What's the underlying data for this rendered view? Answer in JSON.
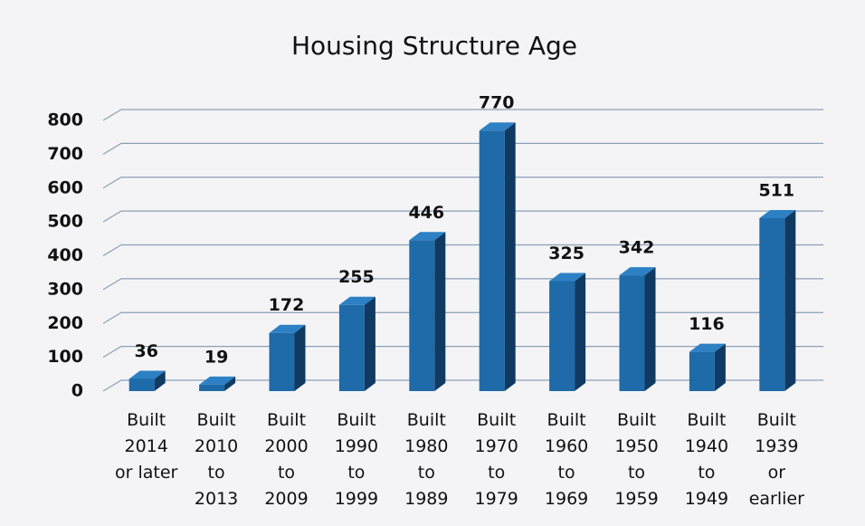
{
  "chart_data": {
    "type": "bar",
    "title": "Housing Structure Age",
    "categories": [
      "Built\n2014\nor later",
      "Built\n2010\nto\n2013",
      "Built\n2000\nto\n2009",
      "Built\n1990\nto\n1999",
      "Built\n1980\nto\n1989",
      "Built\n1970\nto\n1979",
      "Built\n1960\nto\n1969",
      "Built\n1950\nto\n1959",
      "Built\n1940\nto\n1949",
      "Built\n1939\nor\nearlier"
    ],
    "values": [
      36,
      19,
      172,
      255,
      446,
      770,
      325,
      342,
      116,
      511
    ],
    "color": "#1f6aa8",
    "ylim": [
      0,
      800
    ],
    "yticks": [
      0,
      100,
      200,
      300,
      400,
      500,
      600,
      700,
      800
    ],
    "grid": true
  }
}
